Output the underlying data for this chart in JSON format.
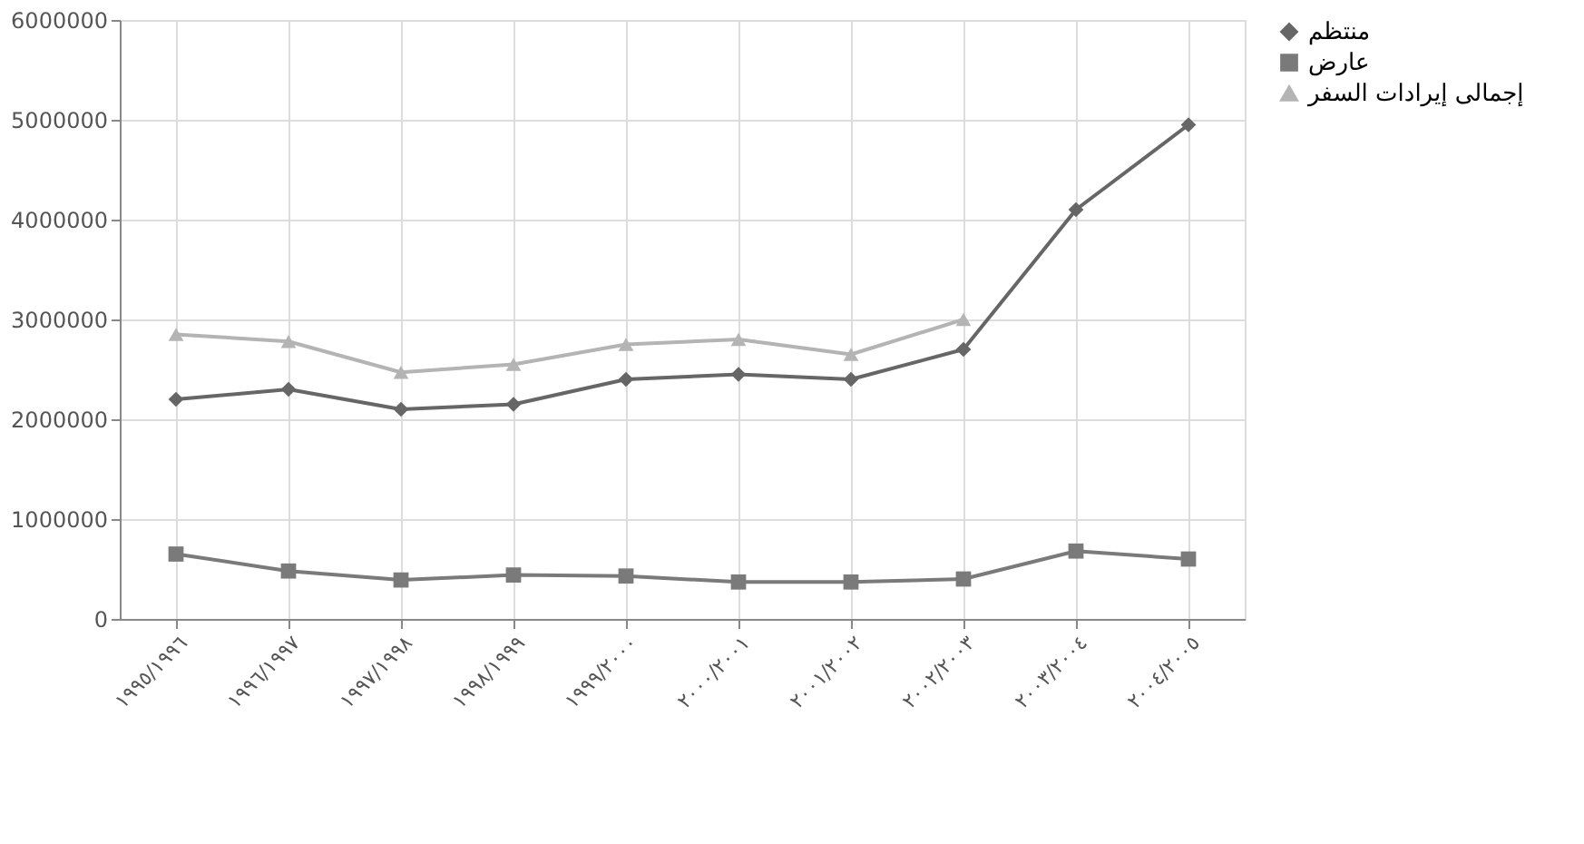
{
  "chart_data": {
    "type": "line",
    "categories": [
      "١٩٩٥/١٩٩٦",
      "١٩٩٦/١٩٩٧",
      "١٩٩٧/١٩٩٨",
      "١٩٩٨/١٩٩٩",
      "١٩٩٩/٢٠٠٠",
      "٢٠٠٠/٢٠٠١",
      "٢٠٠١/٢٠٠٢",
      "٢٠٠٢/٢٠٠٣",
      "٢٠٠٣/٢٠٠٤",
      "٢٠٠٤/٢٠٠٥"
    ],
    "series": [
      {
        "name": "منتظم",
        "color": "#666666",
        "marker": "diamond",
        "values": [
          2200000,
          2300000,
          2100000,
          2150000,
          2400000,
          2450000,
          2400000,
          2700000,
          4100000,
          4950000
        ]
      },
      {
        "name": "عارض",
        "color": "#7a7a7a",
        "marker": "square",
        "values": [
          650000,
          480000,
          390000,
          440000,
          430000,
          370000,
          370000,
          400000,
          680000,
          600000
        ]
      },
      {
        "name": "إجمالى إيرادات السفر",
        "color": "#b4b4b4",
        "marker": "triangle",
        "values": [
          2850000,
          2780000,
          2470000,
          2550000,
          2750000,
          2800000,
          2650000,
          3000000,
          null,
          null
        ]
      }
    ],
    "ylim": [
      0,
      6000000
    ],
    "yticks": [
      0,
      1000000,
      2000000,
      3000000,
      4000000,
      5000000,
      6000000
    ],
    "grid": true,
    "legend": "right",
    "line_style": "solid"
  }
}
